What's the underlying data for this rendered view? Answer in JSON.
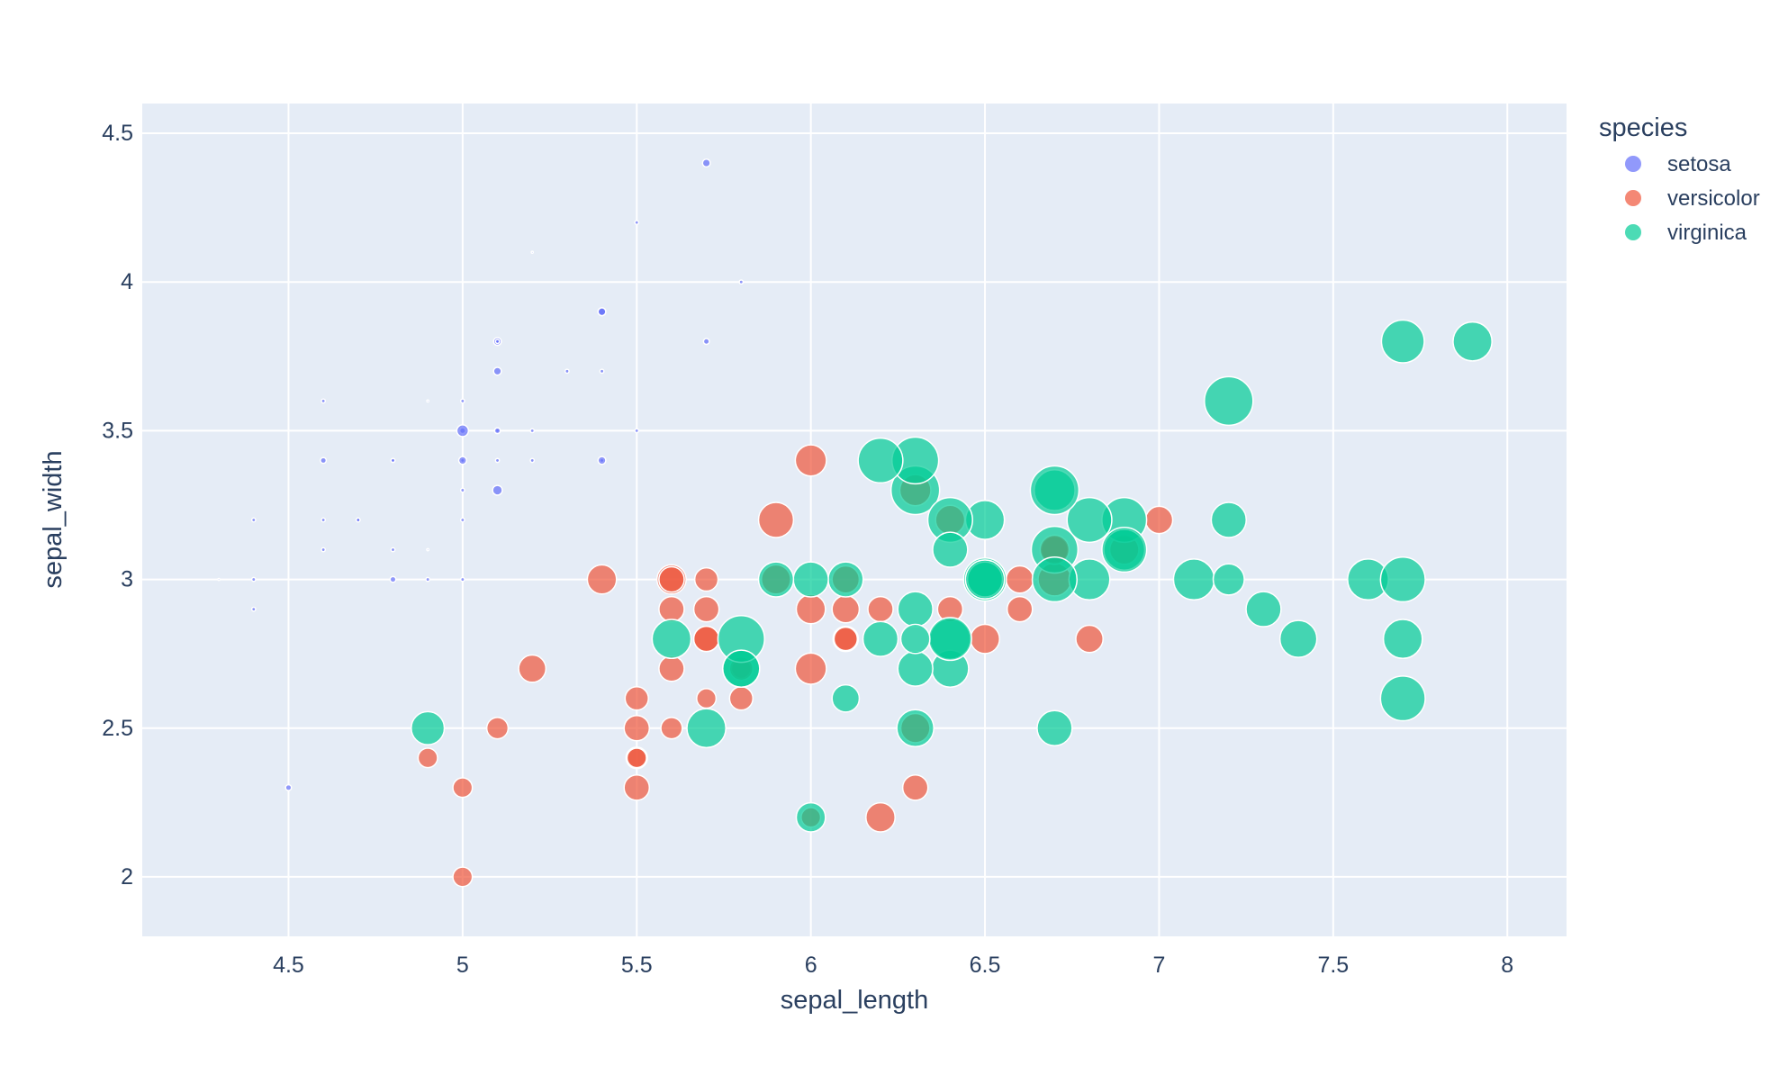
{
  "chart_data": {
    "type": "scatter",
    "xlabel": "sepal_length",
    "ylabel": "sepal_width",
    "xlim": [
      4.08,
      8.17
    ],
    "ylim": [
      1.8,
      4.6
    ],
    "xticks": [
      "4.5",
      "5",
      "5.5",
      "6",
      "6.5",
      "7",
      "7.5",
      "8"
    ],
    "yticks": [
      "2",
      "2.5",
      "3",
      "3.5",
      "4",
      "4.5"
    ],
    "grid": true,
    "plot_background": "#e5ecf6",
    "legend": {
      "title": "species",
      "placement": "right"
    },
    "series": [
      {
        "name": "setosa",
        "color": "#636efa",
        "points": [
          [
            5.1,
            3.5,
            0.2
          ],
          [
            4.9,
            3.0,
            0.2
          ],
          [
            4.7,
            3.2,
            0.2
          ],
          [
            4.6,
            3.1,
            0.2
          ],
          [
            5.0,
            3.6,
            0.2
          ],
          [
            5.4,
            3.9,
            0.4
          ],
          [
            4.6,
            3.4,
            0.3
          ],
          [
            5.0,
            3.4,
            0.2
          ],
          [
            4.4,
            2.9,
            0.2
          ],
          [
            4.9,
            3.1,
            0.1
          ],
          [
            5.4,
            3.7,
            0.2
          ],
          [
            4.8,
            3.4,
            0.2
          ],
          [
            4.8,
            3.0,
            0.1
          ],
          [
            4.3,
            3.0,
            0.1
          ],
          [
            5.8,
            4.0,
            0.2
          ],
          [
            5.7,
            4.4,
            0.4
          ],
          [
            5.4,
            3.9,
            0.4
          ],
          [
            5.1,
            3.5,
            0.3
          ],
          [
            5.7,
            3.8,
            0.3
          ],
          [
            5.1,
            3.8,
            0.3
          ],
          [
            5.4,
            3.4,
            0.2
          ],
          [
            5.1,
            3.7,
            0.4
          ],
          [
            4.6,
            3.6,
            0.2
          ],
          [
            5.1,
            3.3,
            0.5
          ],
          [
            4.8,
            3.4,
            0.2
          ],
          [
            5.0,
            3.0,
            0.2
          ],
          [
            5.0,
            3.4,
            0.4
          ],
          [
            5.2,
            3.5,
            0.2
          ],
          [
            5.2,
            3.4,
            0.2
          ],
          [
            4.7,
            3.2,
            0.2
          ],
          [
            4.8,
            3.1,
            0.2
          ],
          [
            5.4,
            3.4,
            0.4
          ],
          [
            5.2,
            4.1,
            0.1
          ],
          [
            5.5,
            4.2,
            0.2
          ],
          [
            4.9,
            3.1,
            0.1
          ],
          [
            5.0,
            3.2,
            0.2
          ],
          [
            5.5,
            3.5,
            0.2
          ],
          [
            4.9,
            3.6,
            0.1
          ],
          [
            4.4,
            3.0,
            0.2
          ],
          [
            5.1,
            3.4,
            0.2
          ],
          [
            5.0,
            3.5,
            0.3
          ],
          [
            4.5,
            2.3,
            0.3
          ],
          [
            4.4,
            3.2,
            0.2
          ],
          [
            5.0,
            3.5,
            0.6
          ],
          [
            5.1,
            3.8,
            0.4
          ],
          [
            4.8,
            3.0,
            0.3
          ],
          [
            5.1,
            3.8,
            0.2
          ],
          [
            4.6,
            3.2,
            0.2
          ],
          [
            5.3,
            3.7,
            0.2
          ],
          [
            5.0,
            3.3,
            0.2
          ]
        ]
      },
      {
        "name": "versicolor",
        "color": "#ef553b",
        "points": [
          [
            7.0,
            3.2,
            1.4
          ],
          [
            6.4,
            3.2,
            1.5
          ],
          [
            6.9,
            3.1,
            1.5
          ],
          [
            5.5,
            2.3,
            1.3
          ],
          [
            6.5,
            2.8,
            1.5
          ],
          [
            5.7,
            2.8,
            1.3
          ],
          [
            6.3,
            3.3,
            1.6
          ],
          [
            4.9,
            2.4,
            1.0
          ],
          [
            6.6,
            2.9,
            1.3
          ],
          [
            5.2,
            2.7,
            1.4
          ],
          [
            5.0,
            2.0,
            1.0
          ],
          [
            5.9,
            3.0,
            1.5
          ],
          [
            6.0,
            2.2,
            1.0
          ],
          [
            6.1,
            2.9,
            1.4
          ],
          [
            5.6,
            2.9,
            1.3
          ],
          [
            6.7,
            3.1,
            1.4
          ],
          [
            5.6,
            3.0,
            1.5
          ],
          [
            5.8,
            2.7,
            1.0
          ],
          [
            6.2,
            2.2,
            1.5
          ],
          [
            5.6,
            2.5,
            1.1
          ],
          [
            5.9,
            3.2,
            1.8
          ],
          [
            6.1,
            2.8,
            1.3
          ],
          [
            6.3,
            2.5,
            1.5
          ],
          [
            6.1,
            2.8,
            1.2
          ],
          [
            6.4,
            2.9,
            1.3
          ],
          [
            6.6,
            3.0,
            1.4
          ],
          [
            6.8,
            2.8,
            1.4
          ],
          [
            6.7,
            3.0,
            1.7
          ],
          [
            6.0,
            2.9,
            1.5
          ],
          [
            5.7,
            2.6,
            1.0
          ],
          [
            5.5,
            2.4,
            1.1
          ],
          [
            5.5,
            2.4,
            1.0
          ],
          [
            5.8,
            2.7,
            1.2
          ],
          [
            6.0,
            2.7,
            1.6
          ],
          [
            5.4,
            3.0,
            1.5
          ],
          [
            6.0,
            3.4,
            1.6
          ],
          [
            6.7,
            3.1,
            1.5
          ],
          [
            6.3,
            2.3,
            1.3
          ],
          [
            5.6,
            3.0,
            1.3
          ],
          [
            5.5,
            2.5,
            1.3
          ],
          [
            5.5,
            2.6,
            1.2
          ],
          [
            6.1,
            3.0,
            1.4
          ],
          [
            5.8,
            2.6,
            1.2
          ],
          [
            5.0,
            2.3,
            1.0
          ],
          [
            5.6,
            2.7,
            1.3
          ],
          [
            5.7,
            3.0,
            1.2
          ],
          [
            5.7,
            2.9,
            1.3
          ],
          [
            6.2,
            2.9,
            1.3
          ],
          [
            5.1,
            2.5,
            1.1
          ],
          [
            5.7,
            2.8,
            1.3
          ]
        ]
      },
      {
        "name": "virginica",
        "color": "#00cc96",
        "points": [
          [
            6.3,
            3.3,
            2.5
          ],
          [
            5.8,
            2.7,
            1.9
          ],
          [
            7.1,
            3.0,
            2.1
          ],
          [
            6.3,
            2.9,
            1.8
          ],
          [
            6.5,
            3.0,
            2.2
          ],
          [
            7.6,
            3.0,
            2.1
          ],
          [
            4.9,
            2.5,
            1.7
          ],
          [
            7.3,
            2.9,
            1.8
          ],
          [
            6.7,
            2.5,
            1.8
          ],
          [
            7.2,
            3.6,
            2.5
          ],
          [
            6.5,
            3.2,
            2.0
          ],
          [
            6.4,
            2.7,
            1.9
          ],
          [
            6.8,
            3.0,
            2.1
          ],
          [
            5.7,
            2.5,
            2.0
          ],
          [
            5.8,
            2.8,
            2.4
          ],
          [
            6.4,
            3.2,
            2.3
          ],
          [
            6.5,
            3.0,
            1.8
          ],
          [
            7.7,
            3.8,
            2.2
          ],
          [
            7.7,
            2.6,
            2.3
          ],
          [
            6.0,
            2.2,
            1.5
          ],
          [
            6.9,
            3.2,
            2.3
          ],
          [
            5.6,
            2.8,
            2.0
          ],
          [
            7.7,
            2.8,
            2.0
          ],
          [
            6.3,
            2.7,
            1.8
          ],
          [
            6.7,
            3.3,
            2.1
          ],
          [
            7.2,
            3.2,
            1.8
          ],
          [
            6.2,
            2.8,
            1.8
          ],
          [
            6.1,
            3.0,
            1.8
          ],
          [
            6.4,
            2.8,
            2.1
          ],
          [
            7.2,
            3.0,
            1.6
          ],
          [
            7.4,
            2.8,
            1.9
          ],
          [
            7.9,
            3.8,
            2.0
          ],
          [
            6.4,
            2.8,
            2.2
          ],
          [
            6.3,
            2.8,
            1.5
          ],
          [
            6.1,
            2.6,
            1.4
          ],
          [
            7.7,
            3.0,
            2.3
          ],
          [
            6.3,
            3.4,
            2.4
          ],
          [
            6.4,
            3.1,
            1.8
          ],
          [
            6.0,
            3.0,
            1.8
          ],
          [
            6.9,
            3.1,
            2.1
          ],
          [
            6.7,
            3.1,
            2.4
          ],
          [
            6.9,
            3.1,
            2.3
          ],
          [
            5.8,
            2.7,
            1.9
          ],
          [
            6.8,
            3.2,
            2.3
          ],
          [
            6.7,
            3.3,
            2.5
          ],
          [
            6.7,
            3.0,
            2.3
          ],
          [
            6.3,
            2.5,
            1.9
          ],
          [
            6.5,
            3.0,
            2.0
          ],
          [
            6.2,
            3.4,
            2.3
          ],
          [
            5.9,
            3.0,
            1.8
          ]
        ]
      }
    ]
  }
}
